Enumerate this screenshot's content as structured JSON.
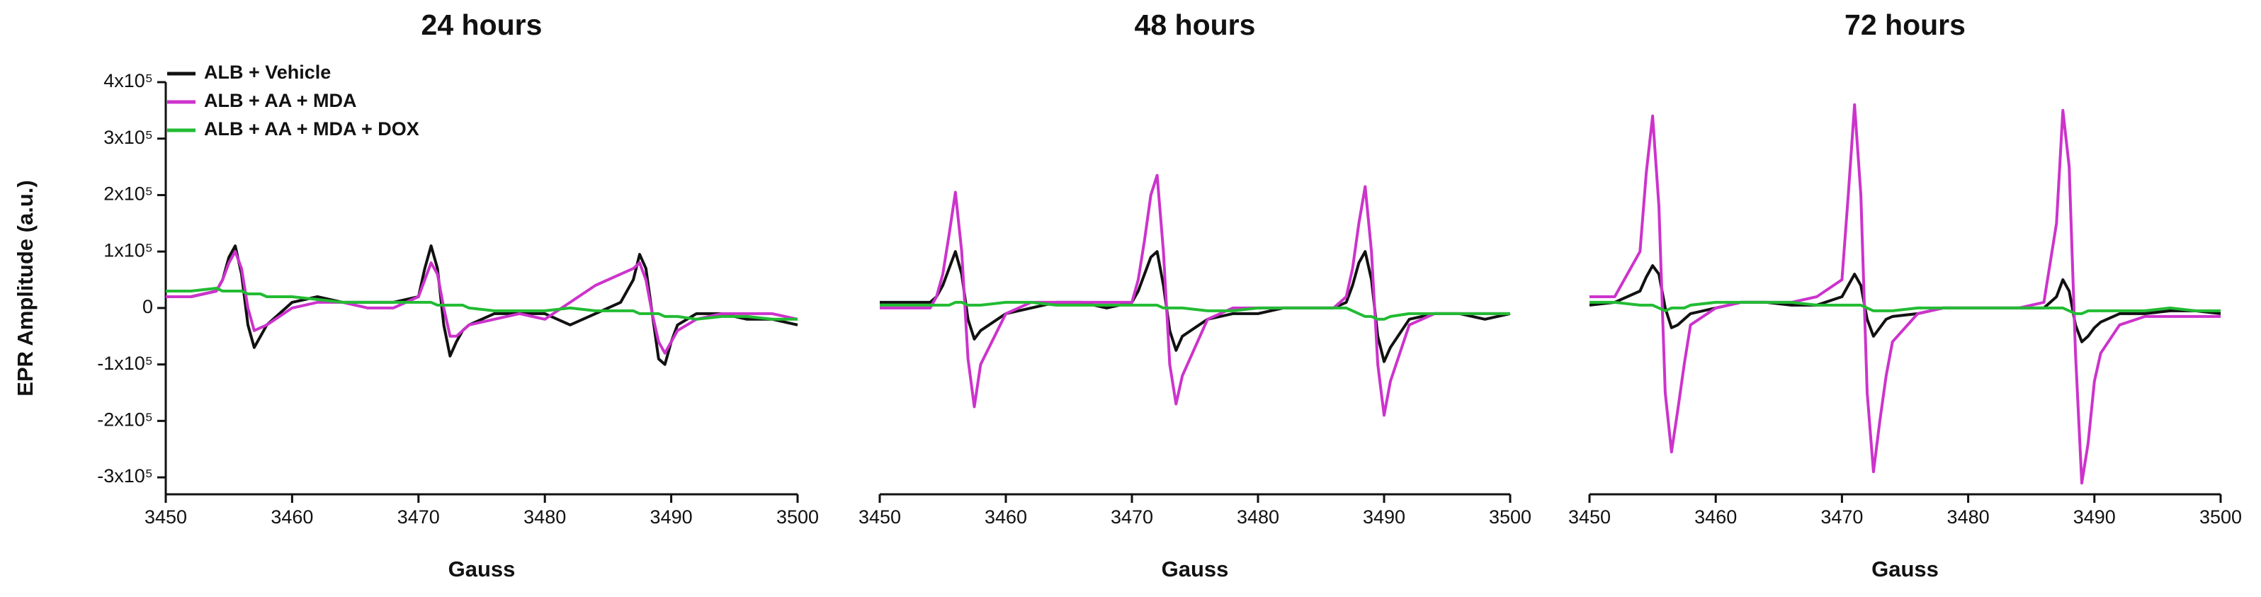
{
  "chart_data": [
    {
      "type": "line",
      "title": "24 hours",
      "xlabel": "Gauss",
      "ylabel": "EPR Amplitude (a.u.)",
      "x": [
        3450,
        3452,
        3454,
        3454.5,
        3455,
        3455.5,
        3456,
        3456.5,
        3457,
        3457.5,
        3458,
        3460,
        3462,
        3464,
        3466,
        3468,
        3470,
        3470.5,
        3471,
        3471.5,
        3472,
        3472.5,
        3473,
        3473.5,
        3474,
        3476,
        3478,
        3480,
        3482,
        3484,
        3486,
        3487,
        3487.5,
        3488,
        3488.5,
        3489,
        3489.5,
        3490,
        3490.5,
        3492,
        3494,
        3496,
        3498,
        3500
      ],
      "xlim": [
        3450,
        3500
      ],
      "xticks": [
        3450,
        3460,
        3470,
        3480,
        3490,
        3500
      ],
      "ylim": [
        -330000,
        400000
      ],
      "yticks": [
        {
          "value": -300000,
          "label": "-3x10⁵"
        },
        {
          "value": -200000,
          "label": "-2x10⁵"
        },
        {
          "value": -100000,
          "label": "-1x10⁵"
        },
        0,
        {
          "value": 100000,
          "label": "1x10⁵"
        },
        {
          "value": 200000,
          "label": "2x10⁵"
        },
        {
          "value": 300000,
          "label": "3x10⁵"
        },
        {
          "value": 400000,
          "label": "4x10⁵"
        }
      ],
      "legend": "upper left",
      "series": [
        {
          "name": "ALB + Vehicle",
          "color": "#111111",
          "values": [
            20000,
            20000,
            30000,
            50000,
            90000,
            110000,
            60000,
            -30000,
            -70000,
            -50000,
            -30000,
            10000,
            20000,
            10000,
            10000,
            10000,
            20000,
            70000,
            110000,
            70000,
            -30000,
            -85000,
            -60000,
            -40000,
            -30000,
            -10000,
            -10000,
            -10000,
            -30000,
            -10000,
            10000,
            50000,
            95000,
            70000,
            -10000,
            -90000,
            -100000,
            -60000,
            -30000,
            -10000,
            -10000,
            -20000,
            -20000,
            -30000
          ]
        },
        {
          "name": "ALB + AA + MDA",
          "color": "#cc33cc",
          "values": [
            20000,
            20000,
            30000,
            50000,
            80000,
            100000,
            70000,
            0,
            -40000,
            -35000,
            -30000,
            0,
            10000,
            10000,
            0,
            0,
            20000,
            50000,
            80000,
            60000,
            0,
            -50000,
            -50000,
            -40000,
            -30000,
            -20000,
            -10000,
            -20000,
            10000,
            40000,
            60000,
            70000,
            80000,
            50000,
            -10000,
            -60000,
            -80000,
            -60000,
            -40000,
            -20000,
            -10000,
            -10000,
            -10000,
            -20000
          ]
        },
        {
          "name": "ALB + AA + MDA + DOX",
          "color": "#22bb33",
          "values": [
            30000,
            30000,
            35000,
            30000,
            30000,
            30000,
            30000,
            25000,
            25000,
            25000,
            20000,
            20000,
            15000,
            10000,
            10000,
            10000,
            10000,
            10000,
            10000,
            5000,
            5000,
            5000,
            5000,
            5000,
            0,
            -5000,
            -5000,
            -5000,
            0,
            -5000,
            -5000,
            -5000,
            -10000,
            -10000,
            -10000,
            -10000,
            -15000,
            -15000,
            -15000,
            -20000,
            -15000,
            -15000,
            -20000,
            -20000
          ]
        }
      ]
    },
    {
      "type": "line",
      "title": "48 hours",
      "xlabel": "Gauss",
      "x": [
        3450,
        3452,
        3454,
        3454.5,
        3455,
        3455.5,
        3456,
        3456.5,
        3457,
        3457.5,
        3458,
        3460,
        3462,
        3464,
        3466,
        3468,
        3470,
        3470.5,
        3471,
        3471.5,
        3472,
        3472.5,
        3473,
        3473.5,
        3474,
        3476,
        3478,
        3480,
        3482,
        3484,
        3486,
        3487,
        3487.5,
        3488,
        3488.5,
        3489,
        3489.5,
        3490,
        3490.5,
        3492,
        3494,
        3496,
        3498,
        3500
      ],
      "xlim": [
        3450,
        3500
      ],
      "xticks": [
        3450,
        3460,
        3470,
        3480,
        3490,
        3500
      ],
      "ylim": [
        -330000,
        400000
      ],
      "series": [
        {
          "name": "ALB + Vehicle",
          "color": "#111111",
          "values": [
            10000,
            10000,
            10000,
            20000,
            40000,
            70000,
            100000,
            60000,
            -20000,
            -55000,
            -40000,
            -10000,
            0,
            10000,
            10000,
            0,
            10000,
            30000,
            60000,
            90000,
            100000,
            40000,
            -40000,
            -75000,
            -50000,
            -20000,
            -10000,
            -10000,
            0,
            0,
            0,
            10000,
            40000,
            80000,
            100000,
            50000,
            -50000,
            -95000,
            -70000,
            -20000,
            -10000,
            -10000,
            -20000,
            -10000
          ]
        },
        {
          "name": "ALB + AA + MDA",
          "color": "#cc33cc",
          "values": [
            0,
            0,
            0,
            20000,
            60000,
            130000,
            205000,
            100000,
            -90000,
            -175000,
            -100000,
            -10000,
            10000,
            10000,
            10000,
            10000,
            10000,
            50000,
            120000,
            200000,
            235000,
            100000,
            -100000,
            -170000,
            -120000,
            -20000,
            0,
            0,
            0,
            0,
            0,
            20000,
            70000,
            150000,
            215000,
            100000,
            -100000,
            -190000,
            -130000,
            -30000,
            -10000,
            -10000,
            -10000,
            -10000
          ]
        },
        {
          "name": "ALB + AA + MDA + DOX",
          "color": "#22bb33",
          "values": [
            5000,
            5000,
            5000,
            5000,
            5000,
            5000,
            10000,
            10000,
            5000,
            5000,
            5000,
            10000,
            10000,
            5000,
            5000,
            5000,
            5000,
            5000,
            5000,
            5000,
            5000,
            0,
            0,
            0,
            0,
            -5000,
            -5000,
            0,
            0,
            0,
            0,
            0,
            -5000,
            -10000,
            -15000,
            -15000,
            -20000,
            -20000,
            -15000,
            -10000,
            -10000,
            -10000,
            -10000,
            -10000
          ]
        }
      ]
    },
    {
      "type": "line",
      "title": "72 hours",
      "xlabel": "Gauss",
      "x": [
        3450,
        3452,
        3454,
        3454.5,
        3455,
        3455.5,
        3456,
        3456.5,
        3457,
        3457.5,
        3458,
        3460,
        3462,
        3464,
        3466,
        3468,
        3470,
        3470.5,
        3471,
        3471.5,
        3472,
        3472.5,
        3473,
        3473.5,
        3474,
        3476,
        3478,
        3480,
        3482,
        3484,
        3486,
        3487,
        3487.5,
        3488,
        3488.5,
        3489,
        3489.5,
        3490,
        3490.5,
        3492,
        3494,
        3496,
        3498,
        3500
      ],
      "xlim": [
        3450,
        3500
      ],
      "xticks": [
        3450,
        3460,
        3470,
        3480,
        3490,
        3500
      ],
      "ylim": [
        -330000,
        400000
      ],
      "series": [
        {
          "name": "ALB + Vehicle",
          "color": "#111111",
          "values": [
            5000,
            10000,
            30000,
            55000,
            75000,
            60000,
            0,
            -35000,
            -30000,
            -20000,
            -10000,
            0,
            10000,
            10000,
            5000,
            5000,
            20000,
            40000,
            60000,
            40000,
            -20000,
            -50000,
            -35000,
            -20000,
            -15000,
            -10000,
            0,
            0,
            0,
            0,
            0,
            20000,
            50000,
            30000,
            -30000,
            -60000,
            -50000,
            -35000,
            -25000,
            -10000,
            -10000,
            -5000,
            -5000,
            -10000
          ]
        },
        {
          "name": "ALB + AA + MDA",
          "color": "#cc33cc",
          "values": [
            20000,
            20000,
            100000,
            240000,
            340000,
            180000,
            -150000,
            -255000,
            -180000,
            -100000,
            -30000,
            0,
            10000,
            10000,
            10000,
            20000,
            50000,
            200000,
            360000,
            200000,
            -150000,
            -290000,
            -200000,
            -120000,
            -60000,
            -10000,
            0,
            0,
            0,
            0,
            10000,
            150000,
            350000,
            250000,
            -80000,
            -310000,
            -240000,
            -130000,
            -80000,
            -30000,
            -15000,
            -15000,
            -15000,
            -15000
          ]
        },
        {
          "name": "ALB + AA + MDA + DOX",
          "color": "#22bb33",
          "values": [
            10000,
            10000,
            5000,
            5000,
            5000,
            0,
            -5000,
            0,
            0,
            0,
            5000,
            10000,
            10000,
            10000,
            10000,
            5000,
            5000,
            5000,
            5000,
            5000,
            0,
            -5000,
            -5000,
            -5000,
            -5000,
            0,
            0,
            0,
            0,
            0,
            0,
            0,
            0,
            -5000,
            -10000,
            -10000,
            -5000,
            -5000,
            -5000,
            -5000,
            -5000,
            0,
            -5000,
            -5000
          ]
        }
      ]
    }
  ]
}
